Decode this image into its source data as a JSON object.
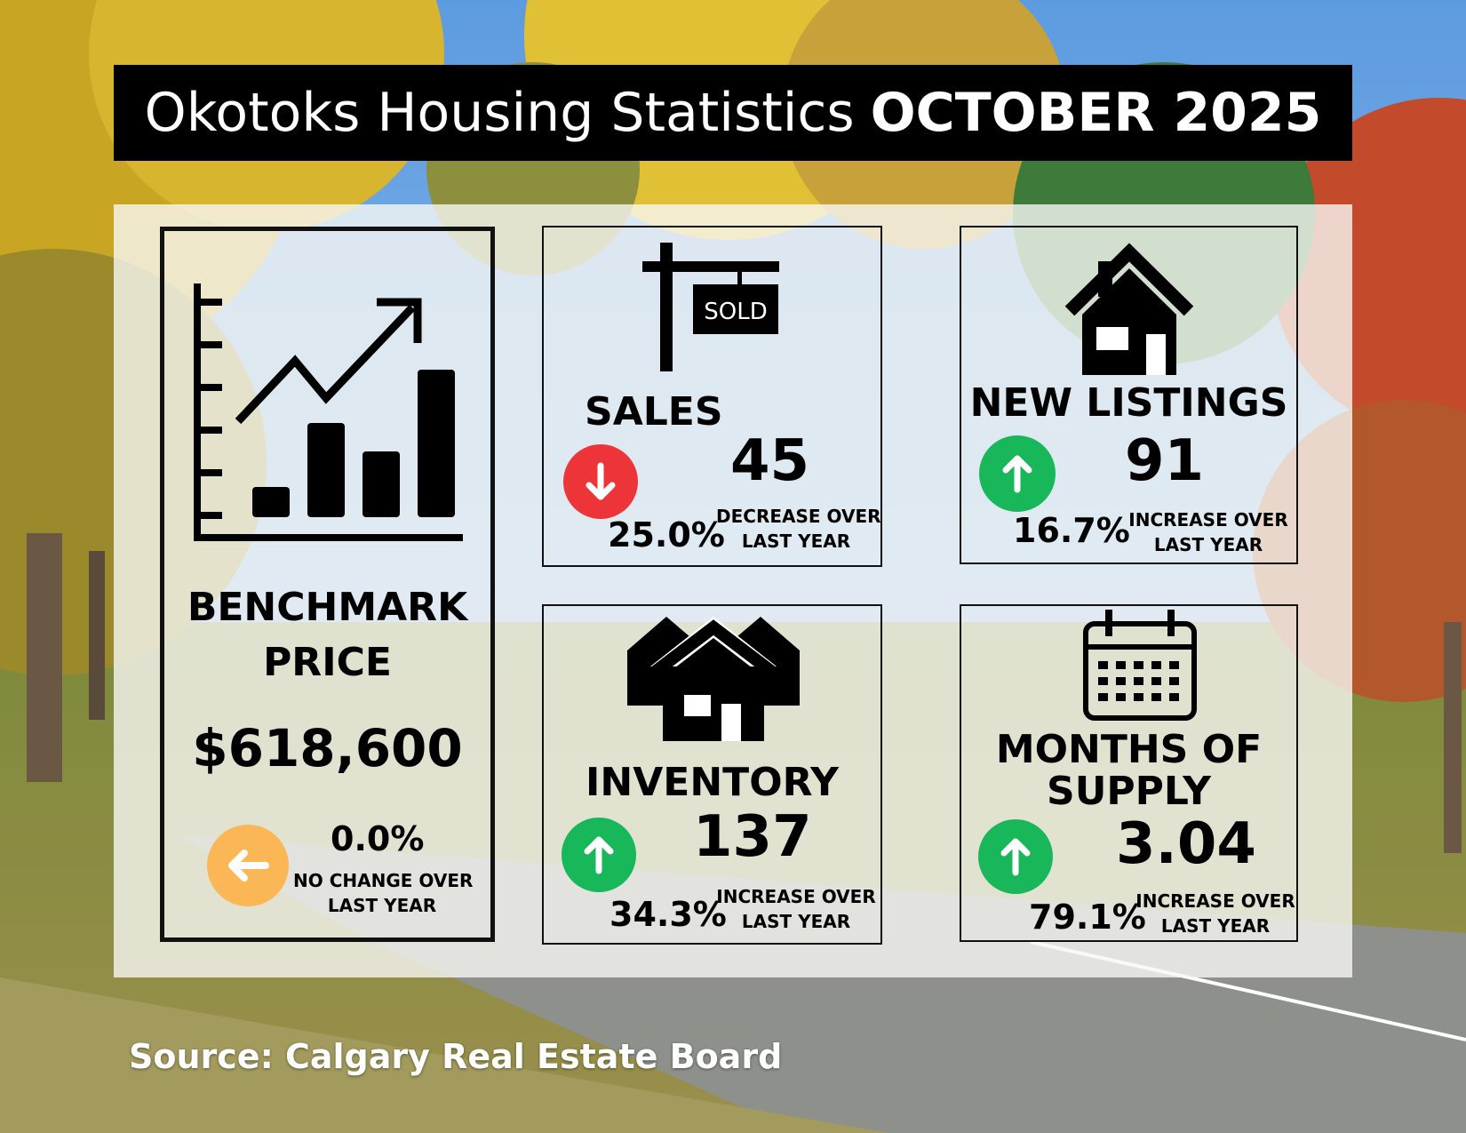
{
  "title": {
    "prefix": "Okotoks Housing Statistics",
    "highlight": "OCTOBER 2025"
  },
  "colors": {
    "down": "#ed3438",
    "up": "#17b75a",
    "flat": "#fbb756",
    "title_bg": "#000000"
  },
  "benchmark": {
    "label_line1": "BENCHMARK",
    "label_line2": "PRICE",
    "value": "$618,600",
    "change": "0.0%",
    "note_line1": "NO CHANGE OVER",
    "note_line2": "LAST YEAR",
    "icon": "bar-chart-trend-icon",
    "direction_icon": "arrow-left-icon"
  },
  "sales": {
    "label": "SALES",
    "value": "45",
    "change": "25.0%",
    "note_line1": "DECREASE OVER",
    "note_line2": "LAST YEAR",
    "sign_text": "SOLD",
    "icon": "sold-sign-icon",
    "direction_icon": "arrow-down-icon"
  },
  "new_listings": {
    "label": "NEW LISTINGS",
    "value": "91",
    "change": "16.7%",
    "note_line1": "INCREASE OVER",
    "note_line2": "LAST YEAR",
    "icon": "house-icon",
    "direction_icon": "arrow-up-icon"
  },
  "inventory": {
    "label": "INVENTORY",
    "value": "137",
    "change": "34.3%",
    "note_line1": "INCREASE OVER",
    "note_line2": "LAST YEAR",
    "icon": "houses-icon",
    "direction_icon": "arrow-up-icon"
  },
  "months_supply": {
    "label_line1": "MONTHS OF",
    "label_line2": "SUPPLY",
    "value": "3.04",
    "change": "79.1%",
    "note_line1": "INCREASE OVER",
    "note_line2": "LAST YEAR",
    "icon": "calendar-icon",
    "direction_icon": "arrow-up-icon"
  },
  "source": "Source: Calgary Real Estate Board"
}
